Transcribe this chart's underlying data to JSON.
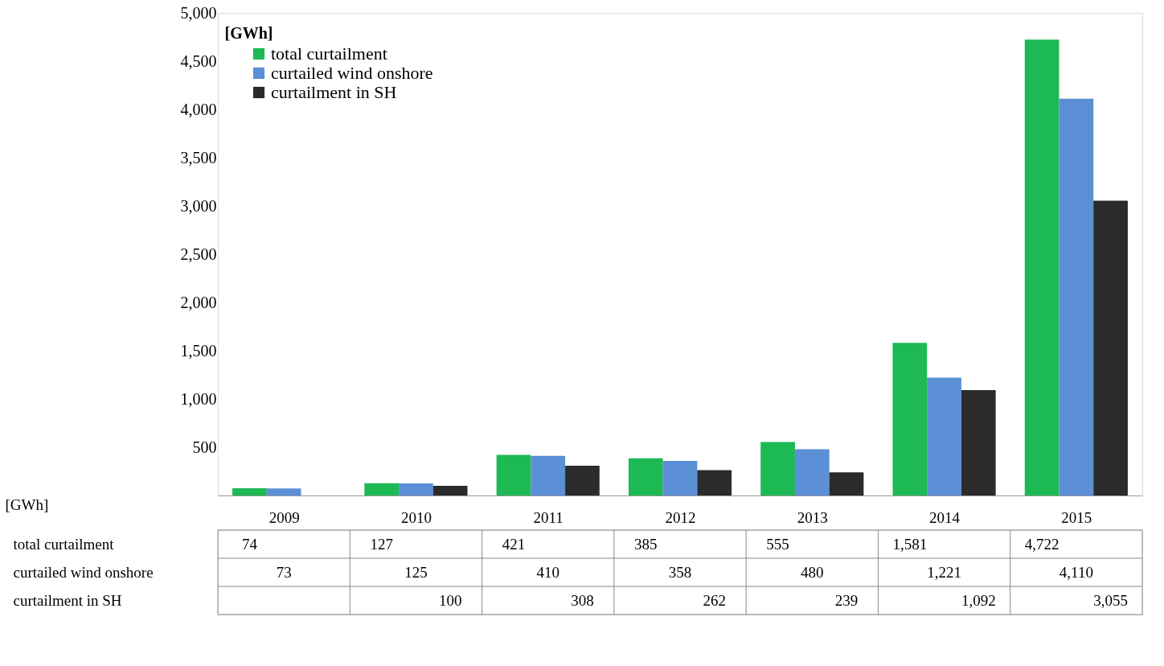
{
  "chart_data": {
    "type": "bar",
    "ylabel": "[GWh]",
    "categories": [
      "2009",
      "2010",
      "2011",
      "2012",
      "2013",
      "2014",
      "2015"
    ],
    "series": [
      {
        "name": "total curtailment",
        "color": "#1db954",
        "values": [
          74,
          127,
          421,
          385,
          555,
          1581,
          4722
        ],
        "value_labels": [
          "74",
          "127",
          "421",
          "385",
          "555",
          "1,581",
          "4,722"
        ]
      },
      {
        "name": "curtailed wind onshore",
        "color": "#5b8fd6",
        "values": [
          73,
          125,
          410,
          358,
          480,
          1221,
          4110
        ],
        "value_labels": [
          "73",
          "125",
          "410",
          "358",
          "480",
          "1,221",
          "4,110"
        ]
      },
      {
        "name": "curtailment in SH",
        "color": "#2b2b2b",
        "values": [
          null,
          100,
          308,
          262,
          239,
          1092,
          3055
        ],
        "value_labels": [
          null,
          "100",
          "308",
          "262",
          "239",
          "1,092",
          "3,055"
        ]
      }
    ],
    "ylim": [
      0,
      5000
    ],
    "yticks": [
      500,
      {
        "value": 1000,
        "label": "1,000"
      },
      {
        "value": 1500,
        "label": "1,500"
      },
      {
        "value": 2000,
        "label": "2,000"
      },
      {
        "value": 2500,
        "label": "2,500"
      },
      {
        "value": 3000,
        "label": "3,000"
      },
      {
        "value": 3500,
        "label": "3,500"
      },
      {
        "value": 4000,
        "label": "4,000"
      },
      {
        "value": 4500,
        "label": "4,500"
      },
      {
        "value": 5000,
        "label": "5,000"
      }
    ],
    "grid": false,
    "legend": "top left",
    "annotations": [
      "[GWh]"
    ]
  }
}
